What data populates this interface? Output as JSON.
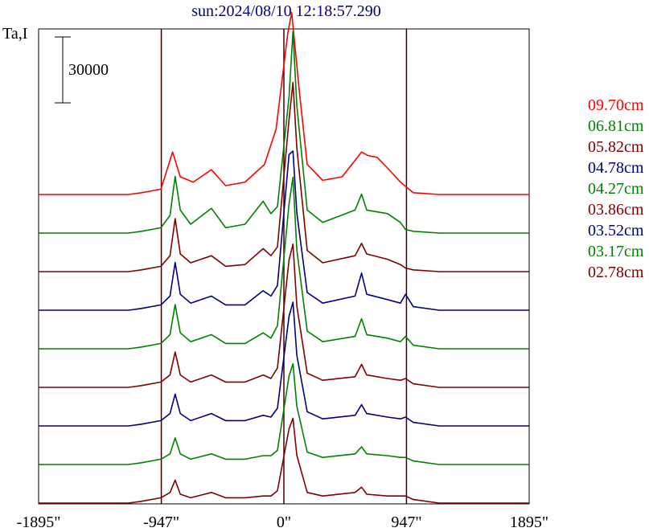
{
  "chart_data": {
    "type": "line",
    "title": "sun:2024/08/10 12:18:57.290",
    "ylabel": "Ta,I",
    "scale_bar_label": "30000",
    "xlim": [
      -1895,
      1895
    ],
    "xticks": [
      {
        "value": -1895,
        "label": "-1895\""
      },
      {
        "value": -947,
        "label": "-947\""
      },
      {
        "value": 0,
        "label": "0\""
      },
      {
        "value": 947,
        "label": "947\""
      },
      {
        "value": 1895,
        "label": "1895\""
      }
    ],
    "vlines": [
      -947,
      0,
      947
    ],
    "grid": false,
    "legend_position": "right",
    "series": [
      {
        "name": "09.70cm",
        "color": "#ff0000",
        "offset": 9,
        "points": [
          [
            -1895,
            0
          ],
          [
            -1200,
            0
          ],
          [
            -1100,
            1
          ],
          [
            -950,
            3
          ],
          [
            -860,
            24
          ],
          [
            -800,
            10
          ],
          [
            -700,
            7
          ],
          [
            -560,
            14
          ],
          [
            -450,
            5
          ],
          [
            -300,
            7
          ],
          [
            -150,
            17
          ],
          [
            -60,
            37
          ],
          [
            30,
            91
          ],
          [
            60,
            103
          ],
          [
            120,
            58
          ],
          [
            180,
            17
          ],
          [
            300,
            8
          ],
          [
            450,
            10
          ],
          [
            600,
            24
          ],
          [
            650,
            22
          ],
          [
            720,
            21
          ],
          [
            800,
            15
          ],
          [
            900,
            7
          ],
          [
            1000,
            1
          ],
          [
            1200,
            0
          ],
          [
            1895,
            0
          ]
        ]
      },
      {
        "name": "06.81cm",
        "color": "#008000",
        "offset": 8,
        "points": [
          [
            -1895,
            0
          ],
          [
            -1200,
            0
          ],
          [
            -1100,
            1
          ],
          [
            -950,
            3
          ],
          [
            -880,
            10
          ],
          [
            -840,
            32
          ],
          [
            -800,
            13
          ],
          [
            -720,
            5
          ],
          [
            -560,
            14
          ],
          [
            -450,
            3
          ],
          [
            -300,
            5
          ],
          [
            -160,
            18
          ],
          [
            -100,
            11
          ],
          [
            -50,
            15
          ],
          [
            40,
            77
          ],
          [
            70,
            114
          ],
          [
            100,
            72
          ],
          [
            180,
            13
          ],
          [
            300,
            6
          ],
          [
            550,
            13
          ],
          [
            600,
            22
          ],
          [
            640,
            13
          ],
          [
            800,
            11
          ],
          [
            900,
            6
          ],
          [
            940,
            2
          ],
          [
            1000,
            1
          ],
          [
            1200,
            0
          ],
          [
            1895,
            0
          ]
        ]
      },
      {
        "name": "05.82cm",
        "color": "#800000",
        "offset": 7,
        "points": [
          [
            -1895,
            0
          ],
          [
            -1200,
            0
          ],
          [
            -1100,
            1
          ],
          [
            -950,
            3
          ],
          [
            -880,
            9
          ],
          [
            -840,
            30
          ],
          [
            -800,
            10
          ],
          [
            -720,
            5
          ],
          [
            -560,
            9
          ],
          [
            -450,
            3
          ],
          [
            -300,
            4
          ],
          [
            -160,
            13
          ],
          [
            -100,
            9
          ],
          [
            -50,
            14
          ],
          [
            40,
            86
          ],
          [
            70,
            107
          ],
          [
            100,
            70
          ],
          [
            180,
            12
          ],
          [
            300,
            5
          ],
          [
            550,
            9
          ],
          [
            600,
            16
          ],
          [
            640,
            10
          ],
          [
            800,
            7
          ],
          [
            900,
            4
          ],
          [
            940,
            2
          ],
          [
            1000,
            1
          ],
          [
            1200,
            0
          ],
          [
            1895,
            0
          ]
        ]
      },
      {
        "name": "04.78cm",
        "color": "#000080",
        "offset": 6,
        "points": [
          [
            -1895,
            0
          ],
          [
            -1200,
            0
          ],
          [
            -1100,
            1
          ],
          [
            -950,
            3
          ],
          [
            -880,
            8
          ],
          [
            -840,
            27
          ],
          [
            -800,
            9
          ],
          [
            -720,
            4
          ],
          [
            -560,
            8
          ],
          [
            -450,
            3
          ],
          [
            -300,
            3
          ],
          [
            -160,
            11
          ],
          [
            -100,
            8
          ],
          [
            -50,
            14
          ],
          [
            40,
            88
          ],
          [
            70,
            90
          ],
          [
            100,
            55
          ],
          [
            180,
            10
          ],
          [
            300,
            4
          ],
          [
            550,
            8
          ],
          [
            600,
            21
          ],
          [
            640,
            9
          ],
          [
            800,
            6
          ],
          [
            900,
            4
          ],
          [
            940,
            9
          ],
          [
            1000,
            2
          ],
          [
            1200,
            0
          ],
          [
            1895,
            0
          ]
        ]
      },
      {
        "name": "04.27cm",
        "color": "#008000",
        "offset": 5,
        "points": [
          [
            -1895,
            0
          ],
          [
            -1200,
            0
          ],
          [
            -1100,
            1
          ],
          [
            -950,
            3
          ],
          [
            -880,
            8
          ],
          [
            -840,
            25
          ],
          [
            -800,
            9
          ],
          [
            -720,
            4
          ],
          [
            -560,
            8
          ],
          [
            -450,
            3
          ],
          [
            -300,
            3
          ],
          [
            -160,
            9
          ],
          [
            -100,
            6
          ],
          [
            -50,
            13
          ],
          [
            40,
            82
          ],
          [
            70,
            97
          ],
          [
            100,
            56
          ],
          [
            180,
            10
          ],
          [
            300,
            4
          ],
          [
            550,
            7
          ],
          [
            600,
            17
          ],
          [
            640,
            8
          ],
          [
            800,
            6
          ],
          [
            900,
            4
          ],
          [
            940,
            7
          ],
          [
            1000,
            2
          ],
          [
            1200,
            0
          ],
          [
            1895,
            0
          ]
        ]
      },
      {
        "name": "03.86cm",
        "color": "#800000",
        "offset": 4,
        "points": [
          [
            -1895,
            0
          ],
          [
            -1200,
            0
          ],
          [
            -1100,
            1
          ],
          [
            -950,
            3
          ],
          [
            -880,
            7
          ],
          [
            -840,
            20
          ],
          [
            -800,
            7
          ],
          [
            -720,
            3
          ],
          [
            -560,
            7
          ],
          [
            -450,
            3
          ],
          [
            -300,
            3
          ],
          [
            -160,
            7
          ],
          [
            -100,
            5
          ],
          [
            -50,
            11
          ],
          [
            40,
            72
          ],
          [
            70,
            81
          ],
          [
            100,
            46
          ],
          [
            180,
            8
          ],
          [
            300,
            4
          ],
          [
            550,
            6
          ],
          [
            600,
            13
          ],
          [
            640,
            7
          ],
          [
            800,
            5
          ],
          [
            900,
            4
          ],
          [
            940,
            5
          ],
          [
            1000,
            2
          ],
          [
            1200,
            0
          ],
          [
            1895,
            0
          ]
        ]
      },
      {
        "name": "03.52cm",
        "color": "#000080",
        "offset": 3,
        "points": [
          [
            -1895,
            0
          ],
          [
            -1200,
            0
          ],
          [
            -1100,
            1
          ],
          [
            -950,
            3
          ],
          [
            -880,
            7
          ],
          [
            -840,
            18
          ],
          [
            -800,
            7
          ],
          [
            -720,
            3
          ],
          [
            -560,
            7
          ],
          [
            -450,
            3
          ],
          [
            -300,
            3
          ],
          [
            -160,
            6
          ],
          [
            -100,
            5
          ],
          [
            -50,
            10
          ],
          [
            40,
            62
          ],
          [
            70,
            70
          ],
          [
            100,
            40
          ],
          [
            180,
            8
          ],
          [
            300,
            4
          ],
          [
            550,
            6
          ],
          [
            600,
            12
          ],
          [
            640,
            7
          ],
          [
            800,
            5
          ],
          [
            900,
            4
          ],
          [
            940,
            5
          ],
          [
            1000,
            2
          ],
          [
            1200,
            0
          ],
          [
            1895,
            0
          ]
        ]
      },
      {
        "name": "03.17cm",
        "color": "#008000",
        "offset": 2,
        "points": [
          [
            -1895,
            0
          ],
          [
            -1200,
            0
          ],
          [
            -1100,
            1
          ],
          [
            -950,
            3
          ],
          [
            -880,
            6
          ],
          [
            -840,
            15
          ],
          [
            -800,
            6
          ],
          [
            -720,
            3
          ],
          [
            -560,
            6
          ],
          [
            -450,
            3
          ],
          [
            -300,
            3
          ],
          [
            -160,
            5
          ],
          [
            -100,
            5
          ],
          [
            -50,
            8
          ],
          [
            40,
            50
          ],
          [
            70,
            57
          ],
          [
            100,
            33
          ],
          [
            180,
            7
          ],
          [
            300,
            4
          ],
          [
            550,
            6
          ],
          [
            600,
            10
          ],
          [
            640,
            6
          ],
          [
            800,
            5
          ],
          [
            900,
            4
          ],
          [
            940,
            4
          ],
          [
            1000,
            2
          ],
          [
            1200,
            0
          ],
          [
            1895,
            0
          ]
        ]
      },
      {
        "name": "02.78cm",
        "color": "#800000",
        "offset": 1,
        "points": [
          [
            -1895,
            0
          ],
          [
            -1200,
            0
          ],
          [
            -1100,
            1
          ],
          [
            -950,
            3
          ],
          [
            -880,
            6
          ],
          [
            -840,
            13
          ],
          [
            -800,
            5
          ],
          [
            -720,
            3
          ],
          [
            -560,
            6
          ],
          [
            -450,
            3
          ],
          [
            -300,
            3
          ],
          [
            -160,
            4
          ],
          [
            -100,
            4
          ],
          [
            -50,
            7
          ],
          [
            40,
            42
          ],
          [
            70,
            48
          ],
          [
            100,
            27
          ],
          [
            180,
            6
          ],
          [
            300,
            4
          ],
          [
            550,
            6
          ],
          [
            600,
            9
          ],
          [
            640,
            5
          ],
          [
            800,
            4
          ],
          [
            900,
            4
          ],
          [
            940,
            4
          ],
          [
            1000,
            2
          ],
          [
            1200,
            0
          ],
          [
            1895,
            0
          ]
        ]
      }
    ]
  }
}
